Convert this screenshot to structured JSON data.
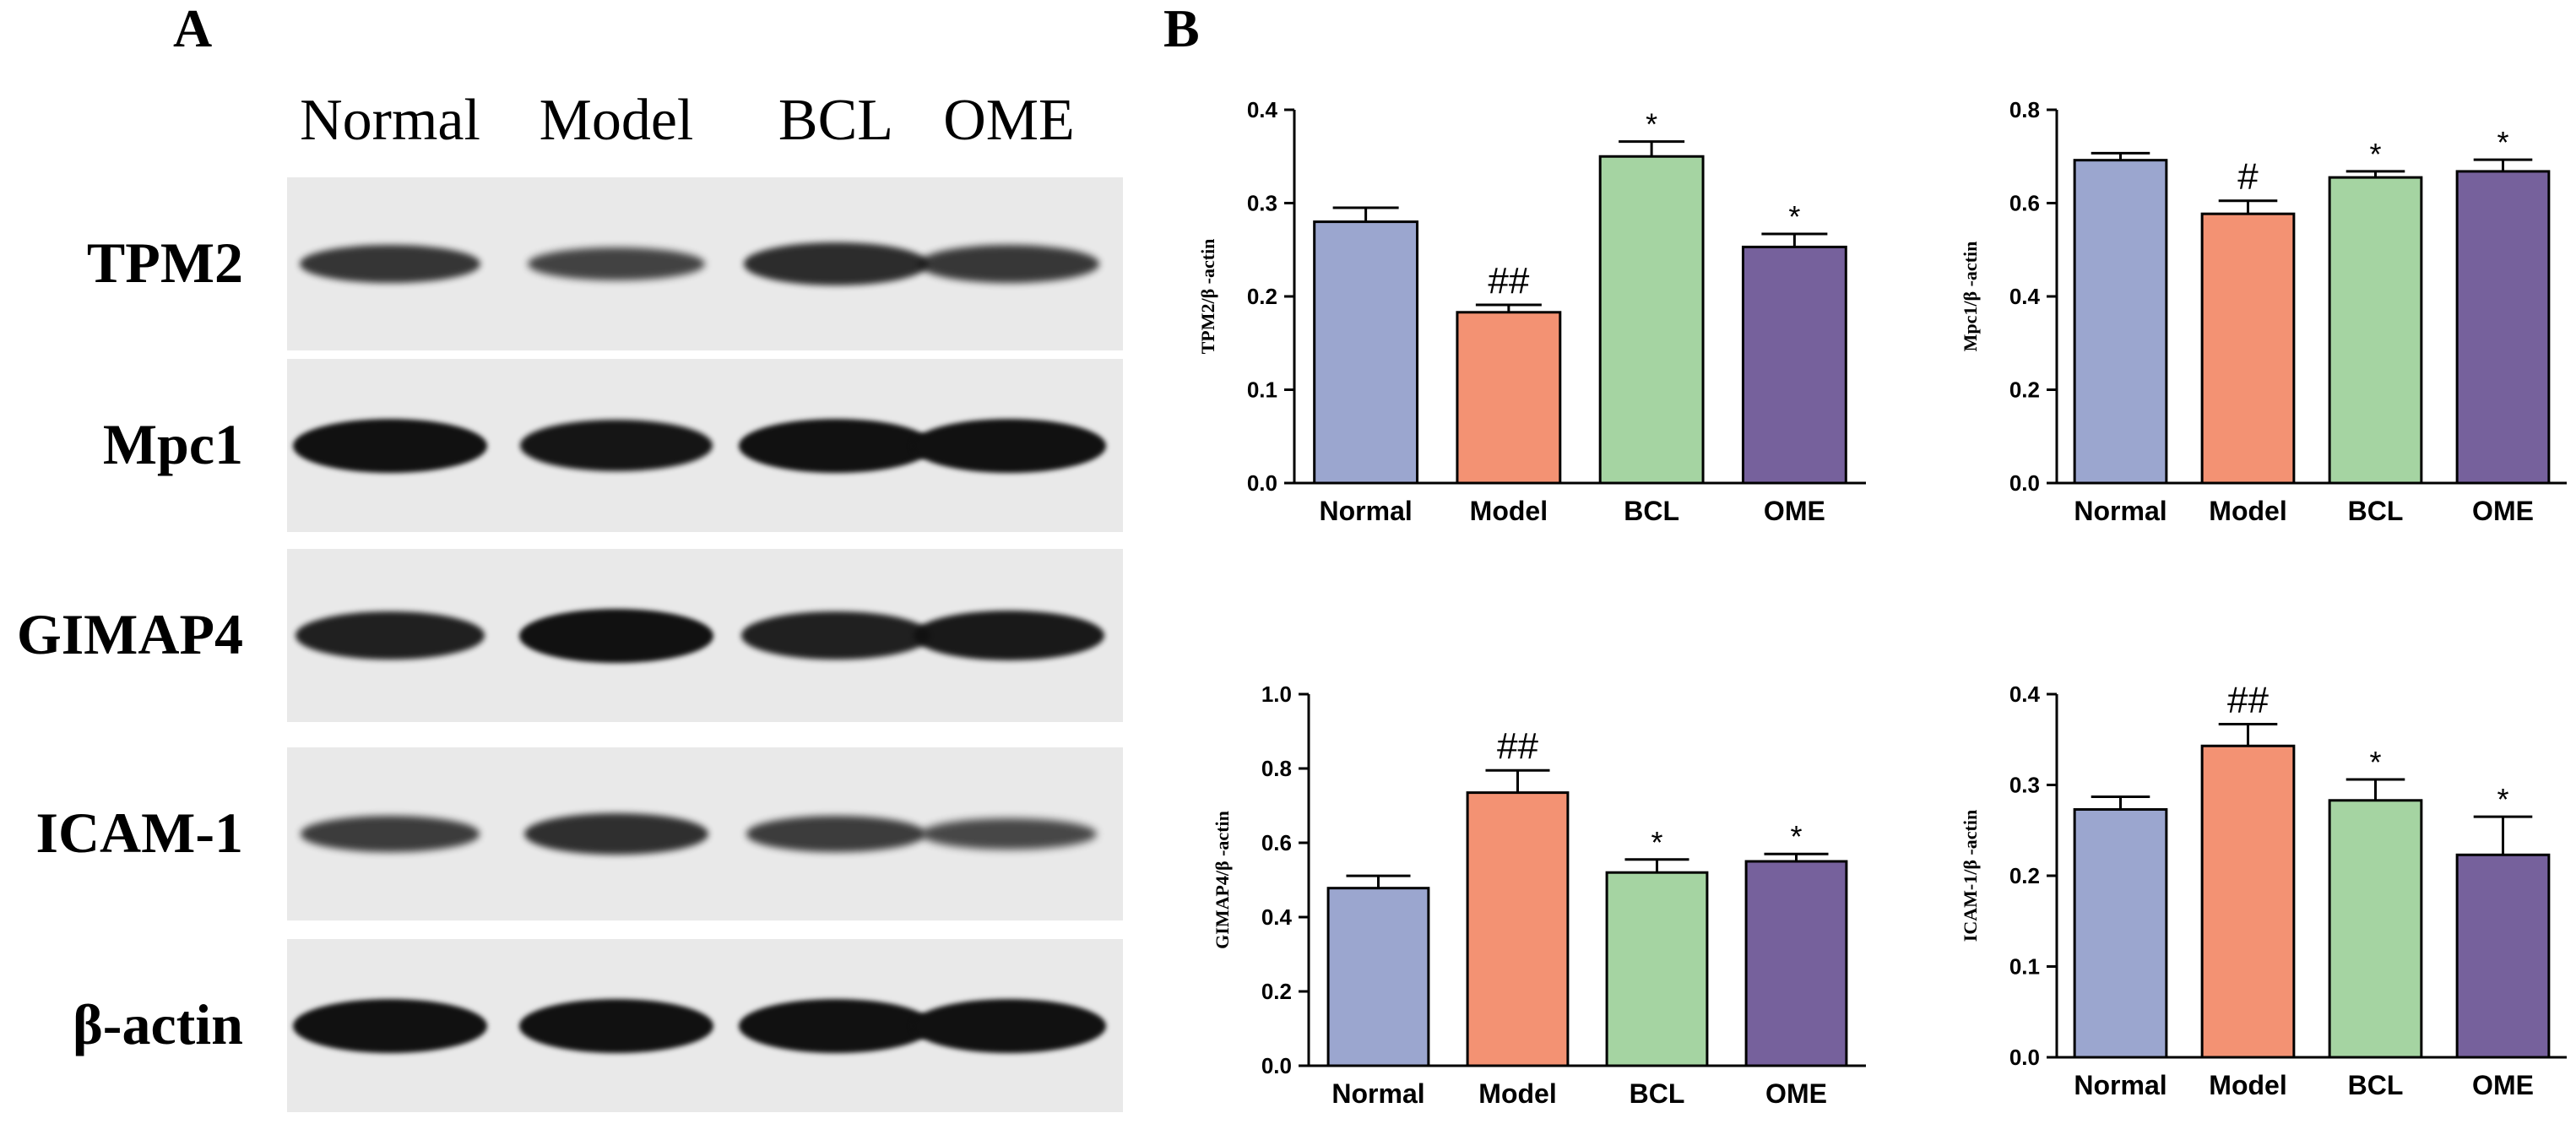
{
  "panel_a": {
    "letter": "A",
    "columns": [
      "Normal",
      "Model",
      "BCL",
      "OME"
    ],
    "rows": [
      {
        "label": "TPM2",
        "band_intensity": [
          0.62,
          0.48,
          0.72,
          0.6
        ]
      },
      {
        "label": "Mpc1",
        "band_intensity": [
          1.0,
          0.95,
          1.0,
          1.0
        ]
      },
      {
        "label": "GIMAP4",
        "band_intensity": [
          0.85,
          1.0,
          0.85,
          0.9
        ]
      },
      {
        "label": "ICAM-1",
        "band_intensity": [
          0.55,
          0.7,
          0.55,
          0.45
        ]
      },
      {
        "label": "β-actin",
        "band_intensity": [
          1.0,
          1.0,
          1.0,
          1.0
        ]
      }
    ]
  },
  "panel_b": {
    "letter": "B"
  },
  "colors": {
    "Normal": "#9ba6cf",
    "Model": "#f39273",
    "BCL": "#a5d4a2",
    "OME": "#76619c"
  },
  "chart_data": [
    {
      "type": "bar",
      "categories": [
        "Normal",
        "Model",
        "BCL",
        "OME"
      ],
      "values": [
        0.28,
        0.183,
        0.35,
        0.253
      ],
      "errors": [
        0.015,
        0.008,
        0.016,
        0.014
      ],
      "annotations": [
        "",
        "##",
        "*",
        "*"
      ],
      "ylabel": "TPM2/β -actin",
      "ylim": [
        0,
        0.4
      ],
      "yticks": [
        "0.0",
        "0.1",
        "0.2",
        "0.3",
        "0.4"
      ]
    },
    {
      "type": "bar",
      "categories": [
        "Normal",
        "Model",
        "BCL",
        "OME"
      ],
      "values": [
        0.692,
        0.577,
        0.655,
        0.668
      ],
      "errors": [
        0.015,
        0.028,
        0.013,
        0.025
      ],
      "annotations": [
        "",
        "#",
        "*",
        "*"
      ],
      "ylabel": "Mpc1/β -actin",
      "ylim": [
        0,
        0.8
      ],
      "yticks": [
        "0.0",
        "0.2",
        "0.4",
        "0.6",
        "0.8"
      ]
    },
    {
      "type": "bar",
      "categories": [
        "Normal",
        "Model",
        "BCL",
        "OME"
      ],
      "values": [
        0.478,
        0.735,
        0.52,
        0.55
      ],
      "errors": [
        0.033,
        0.06,
        0.035,
        0.02
      ],
      "annotations": [
        "",
        "##",
        "*",
        "*"
      ],
      "ylabel": "GIMAP4/β -actin",
      "ylim": [
        0,
        1.0
      ],
      "yticks": [
        "0.0",
        "0.2",
        "0.4",
        "0.6",
        "0.8",
        "1.0"
      ]
    },
    {
      "type": "bar",
      "categories": [
        "Normal",
        "Model",
        "BCL",
        "OME"
      ],
      "values": [
        0.273,
        0.343,
        0.283,
        0.223
      ],
      "errors": [
        0.014,
        0.024,
        0.023,
        0.042
      ],
      "annotations": [
        "",
        "##",
        "*",
        "*"
      ],
      "ylabel": "ICAM-1/β -actin",
      "ylim": [
        0,
        0.4
      ],
      "yticks": [
        "0.0",
        "0.1",
        "0.2",
        "0.3",
        "0.4"
      ]
    }
  ]
}
